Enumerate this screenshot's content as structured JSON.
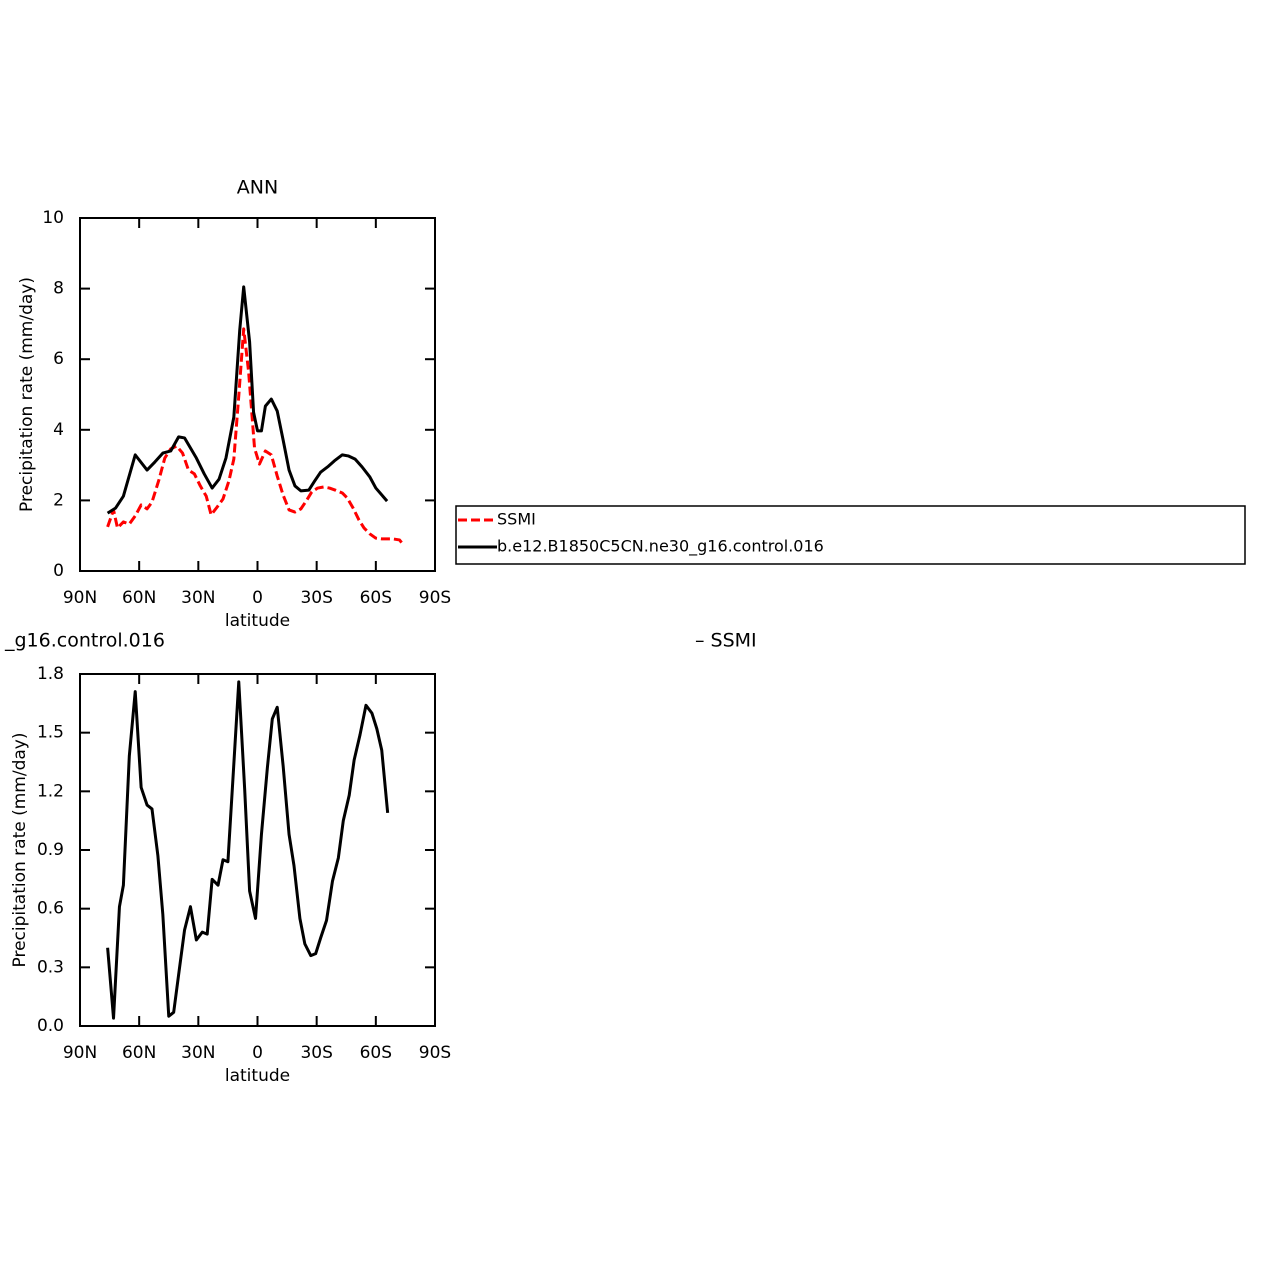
{
  "chart_data": [
    {
      "type": "line",
      "title": "ANN",
      "xlabel": "latitude",
      "ylabel": "Precipitation rate (mm/day)",
      "xlim": [
        90,
        -90
      ],
      "xticks": [
        {
          "value": 90,
          "label": "90N"
        },
        {
          "value": 60,
          "label": "60N"
        },
        {
          "value": 30,
          "label": "30N"
        },
        0,
        {
          "value": -30,
          "label": "30S"
        },
        {
          "value": -60,
          "label": "60S"
        },
        {
          "value": -90,
          "label": "90S"
        }
      ],
      "ylim": [
        0,
        10
      ],
      "yticks": [
        0,
        2,
        4,
        6,
        8,
        10
      ],
      "legend": "right",
      "series": [
        {
          "name": "SSMI",
          "color": "#ff0000",
          "style": "dashed",
          "x": [
            76,
            73,
            71,
            68,
            65,
            62,
            59,
            56,
            53.5,
            50,
            47,
            44,
            41,
            38,
            35,
            32,
            29,
            26,
            23.5,
            20.5,
            17.5,
            14.5,
            12,
            9.5,
            7,
            4.5,
            1.5,
            -1,
            -4,
            -7,
            -10,
            -13,
            -16,
            -19,
            -22,
            -25,
            -27.5,
            -30.5,
            -33.5,
            -36.5,
            -39.5,
            -43,
            -45.5,
            -48.5,
            -51.5,
            -54,
            -57,
            -60,
            -63,
            -65.5,
            -68.5,
            -72,
            -74
          ],
          "values": [
            1.25,
            1.73,
            1.22,
            1.39,
            1.33,
            1.56,
            1.87,
            1.76,
            1.95,
            2.58,
            3.2,
            3.46,
            3.54,
            3.34,
            2.86,
            2.75,
            2.41,
            2.12,
            1.59,
            1.81,
            2.04,
            2.55,
            3.17,
            4.96,
            6.86,
            5.64,
            3.48,
            3.03,
            3.4,
            3.29,
            2.69,
            2.15,
            1.73,
            1.67,
            1.76,
            2.01,
            2.24,
            2.35,
            2.38,
            2.35,
            2.29,
            2.21,
            2.07,
            1.78,
            1.44,
            1.22,
            1.05,
            0.93,
            0.91,
            0.91,
            0.91,
            0.88,
            0.74
          ]
        },
        {
          "name": "b.e12.B1850C5CN.ne30_g16.control.016",
          "color": "#000000",
          "style": "solid",
          "x": [
            76,
            72,
            68,
            62,
            56,
            52,
            48,
            44,
            40,
            37,
            31,
            27,
            23,
            19.5,
            16,
            12,
            9,
            7,
            4,
            2,
            0,
            -2,
            -4,
            -7,
            -10,
            -13,
            -16,
            -19,
            -22,
            -26,
            -29,
            -32,
            -36,
            -39,
            -43,
            -46,
            -49.5,
            -53,
            -57,
            -60,
            -65.7
          ],
          "values": [
            1.64,
            1.78,
            2.12,
            3.29,
            2.86,
            3.09,
            3.34,
            3.4,
            3.8,
            3.77,
            3.2,
            2.75,
            2.35,
            2.6,
            3.2,
            4.36,
            6.83,
            8.05,
            6.49,
            4.5,
            3.97,
            3.97,
            4.67,
            4.87,
            4.53,
            3.71,
            2.86,
            2.41,
            2.27,
            2.29,
            2.55,
            2.8,
            2.97,
            3.12,
            3.29,
            3.26,
            3.17,
            2.95,
            2.66,
            2.35,
            1.98
          ]
        }
      ]
    },
    {
      "type": "line",
      "left_text": "_g16.control.016",
      "right_text": "– SSMI",
      "xlabel": "latitude",
      "ylabel": "Precipitation rate (mm/day)",
      "xlim": [
        90,
        -90
      ],
      "xticks": [
        {
          "value": 90,
          "label": "90N"
        },
        {
          "value": 60,
          "label": "60N"
        },
        {
          "value": 30,
          "label": "30N"
        },
        0,
        {
          "value": -30,
          "label": "30S"
        },
        {
          "value": -60,
          "label": "60S"
        },
        {
          "value": -90,
          "label": "90S"
        }
      ],
      "ylim": [
        0,
        1.8
      ],
      "yticks": [
        {
          "value": 0,
          "label": "0.0"
        },
        0.3,
        0.6,
        0.9,
        1.2,
        1.5,
        1.8
      ],
      "series": [
        {
          "color": "#000000",
          "style": "solid",
          "x": [
            76,
            73,
            70,
            68,
            65,
            62,
            59,
            56,
            53.5,
            50.5,
            48,
            45,
            42.5,
            39.5,
            37,
            34,
            31,
            28,
            25.5,
            23,
            20,
            17.5,
            15,
            12,
            9.5,
            6.5,
            4,
            1,
            -2,
            -5,
            -7.5,
            -10,
            -13,
            -16,
            -18.5,
            -21.5,
            -24,
            -27,
            -29.5,
            -32,
            -35,
            -38,
            -41,
            -43.5,
            -46.5,
            -49,
            -52,
            -55,
            -58,
            -60.5,
            -63,
            -66
          ],
          "values": [
            0.4,
            0.04,
            0.61,
            0.72,
            1.38,
            1.71,
            1.22,
            1.13,
            1.11,
            0.87,
            0.57,
            0.05,
            0.07,
            0.3,
            0.49,
            0.61,
            0.44,
            0.48,
            0.47,
            0.75,
            0.72,
            0.85,
            0.84,
            1.34,
            1.76,
            1.21,
            0.69,
            0.55,
            0.98,
            1.32,
            1.57,
            1.63,
            1.33,
            0.98,
            0.82,
            0.55,
            0.42,
            0.36,
            0.37,
            0.45,
            0.54,
            0.74,
            0.86,
            1.05,
            1.18,
            1.36,
            1.49,
            1.64,
            1.6,
            1.52,
            1.41,
            1.09
          ]
        }
      ]
    }
  ]
}
